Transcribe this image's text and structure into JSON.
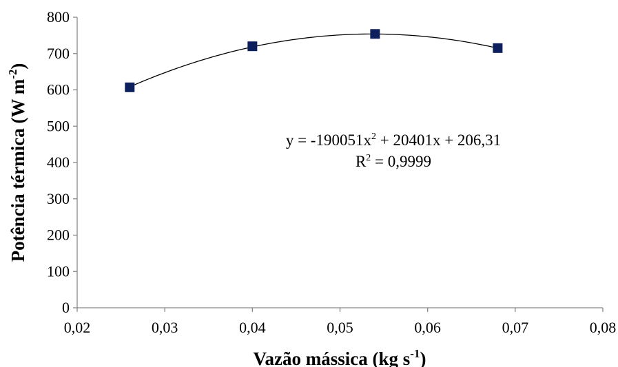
{
  "chart_data": {
    "type": "scatter",
    "x": [
      0.026,
      0.04,
      0.054,
      0.068
    ],
    "y": [
      607,
      720,
      754,
      715
    ],
    "marker_color": "#0d1f5c",
    "trendline": {
      "type": "polynomial",
      "order": 2,
      "coefficients": [
        -190051,
        20401,
        206.31
      ],
      "color": "#000000"
    },
    "xlabel": {
      "main": "Vazão mássica (kg s",
      "sup": "-1",
      "close": ")"
    },
    "ylabel": {
      "main": "Potência térmica (W m",
      "sup": "-2",
      "close": ")"
    },
    "xlim": [
      0.02,
      0.08
    ],
    "ylim": [
      0,
      800
    ],
    "xticks": [
      "0,02",
      "0,03",
      "0,04",
      "0,05",
      "0,06",
      "0,07",
      "0,08"
    ],
    "yticks": [
      "0",
      "100",
      "200",
      "300",
      "400",
      "500",
      "600",
      "700",
      "800"
    ],
    "equation": {
      "p1": "y = -190051x",
      "sup": "2",
      "p2": " + 20401x + 206,31"
    },
    "r2": {
      "p1": "R",
      "sup": "2",
      "p2": " = 0,9999"
    },
    "grid": false,
    "legend": "none"
  }
}
